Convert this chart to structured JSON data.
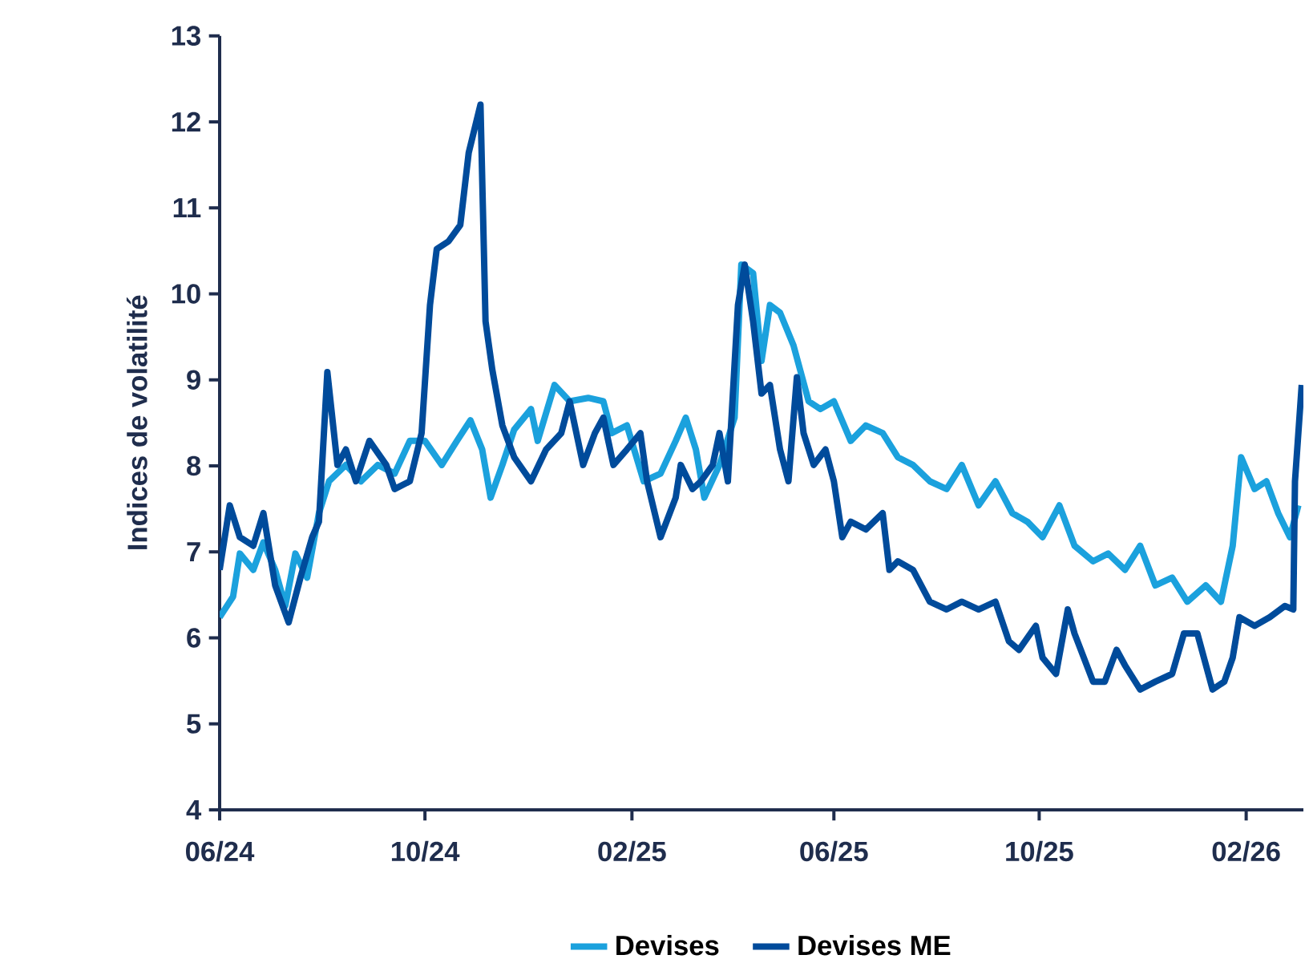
{
  "chart_data": {
    "type": "line",
    "ylabel": "Indices de volatilité",
    "xlim": [
      "2024-06-01",
      "2026-03-07"
    ],
    "ylim": [
      4,
      13
    ],
    "xticks": [
      {
        "value": "2024-06-01",
        "label": "06/24"
      },
      {
        "value": "2024-10-01",
        "label": "10/24"
      },
      {
        "value": "2025-02-01",
        "label": "02/25"
      },
      {
        "value": "2025-06-01",
        "label": "06/25"
      },
      {
        "value": "2025-10-01",
        "label": "10/25"
      },
      {
        "value": "2026-02-01",
        "label": "02/26"
      }
    ],
    "yticks": [
      4,
      5,
      6,
      7,
      8,
      9,
      10,
      11,
      12,
      13
    ],
    "legend": "bottom",
    "series": [
      {
        "name": "Devises",
        "color": "#1ba1dd",
        "x": [
          "2024-06-01",
          "2024-06-09",
          "2024-06-13",
          "2024-06-21",
          "2024-06-27",
          "2024-07-04",
          "2024-07-10",
          "2024-07-16",
          "2024-07-23",
          "2024-07-30",
          "2024-08-05",
          "2024-08-15",
          "2024-08-24",
          "2024-09-03",
          "2024-09-13",
          "2024-09-22",
          "2024-10-01",
          "2024-10-11",
          "2024-10-20",
          "2024-10-28",
          "2024-11-04",
          "2024-11-09",
          "2024-11-16",
          "2024-11-23",
          "2024-12-03",
          "2024-12-07",
          "2024-12-17",
          "2024-12-26",
          "2025-01-06",
          "2025-01-15",
          "2025-01-20",
          "2025-01-29",
          "2025-02-08",
          "2025-02-18",
          "2025-02-27",
          "2025-03-05",
          "2025-03-11",
          "2025-03-16",
          "2025-03-25",
          "2025-04-03",
          "2025-04-07",
          "2025-04-14",
          "2025-04-19",
          "2025-04-24",
          "2025-04-30",
          "2025-05-08",
          "2025-05-17",
          "2025-05-24",
          "2025-06-01",
          "2025-06-11",
          "2025-06-20",
          "2025-06-30",
          "2025-07-09",
          "2025-07-18",
          "2025-07-28",
          "2025-08-07",
          "2025-08-16",
          "2025-08-26",
          "2025-09-05",
          "2025-09-15",
          "2025-09-24",
          "2025-10-03",
          "2025-10-13",
          "2025-10-22",
          "2025-11-02",
          "2025-11-11",
          "2025-11-21",
          "2025-11-30",
          "2025-12-09",
          "2025-12-19",
          "2025-12-28",
          "2026-01-08",
          "2026-01-17",
          "2026-01-24",
          "2026-01-29",
          "2026-02-06",
          "2026-02-13",
          "2026-02-20",
          "2026-02-27",
          "2026-03-04"
        ],
        "values": [
          6.24,
          6.48,
          6.98,
          6.79,
          7.11,
          6.79,
          6.37,
          6.98,
          6.7,
          7.45,
          7.82,
          8.01,
          7.82,
          8.01,
          7.91,
          8.29,
          8.29,
          8.01,
          8.29,
          8.53,
          8.19,
          7.63,
          8.01,
          8.42,
          8.66,
          8.29,
          8.94,
          8.75,
          8.79,
          8.75,
          8.38,
          8.47,
          7.82,
          7.91,
          8.29,
          8.56,
          8.19,
          7.63,
          8.01,
          8.56,
          10.34,
          10.24,
          9.22,
          9.87,
          9.78,
          9.4,
          8.75,
          8.66,
          8.75,
          8.29,
          8.47,
          8.38,
          8.1,
          8.01,
          7.82,
          7.73,
          8.01,
          7.54,
          7.82,
          7.45,
          7.35,
          7.17,
          7.54,
          7.07,
          6.89,
          6.98,
          6.79,
          7.07,
          6.61,
          6.7,
          6.42,
          6.61,
          6.42,
          7.07,
          8.1,
          7.73,
          7.82,
          7.45,
          7.17,
          7.54
        ]
      },
      {
        "name": "Devises ME",
        "color": "#004b9b",
        "x": [
          "2024-06-01",
          "2024-06-07",
          "2024-06-13",
          "2024-06-21",
          "2024-06-27",
          "2024-07-04",
          "2024-07-12",
          "2024-07-19",
          "2024-07-26",
          "2024-07-30",
          "2024-08-04",
          "2024-08-10",
          "2024-08-15",
          "2024-08-21",
          "2024-08-29",
          "2024-09-08",
          "2024-09-13",
          "2024-09-22",
          "2024-09-29",
          "2024-10-04",
          "2024-10-08",
          "2024-10-15",
          "2024-10-22",
          "2024-10-27",
          "2024-11-03",
          "2024-11-06",
          "2024-11-10",
          "2024-11-16",
          "2024-11-23",
          "2024-12-03",
          "2024-12-12",
          "2024-12-21",
          "2024-12-26",
          "2025-01-03",
          "2025-01-10",
          "2025-01-15",
          "2025-01-21",
          "2025-01-29",
          "2025-02-06",
          "2025-02-10",
          "2025-02-18",
          "2025-02-27",
          "2025-03-02",
          "2025-03-09",
          "2025-03-14",
          "2025-03-21",
          "2025-03-25",
          "2025-03-30",
          "2025-04-05",
          "2025-04-09",
          "2025-04-14",
          "2025-04-19",
          "2025-04-24",
          "2025-04-30",
          "2025-05-05",
          "2025-05-10",
          "2025-05-14",
          "2025-05-20",
          "2025-05-27",
          "2025-06-01",
          "2025-06-06",
          "2025-06-11",
          "2025-06-20",
          "2025-06-30",
          "2025-07-04",
          "2025-07-09",
          "2025-07-18",
          "2025-07-28",
          "2025-08-07",
          "2025-08-16",
          "2025-08-26",
          "2025-09-05",
          "2025-09-13",
          "2025-09-19",
          "2025-09-29",
          "2025-10-03",
          "2025-10-11",
          "2025-10-18",
          "2025-10-22",
          "2025-11-02",
          "2025-11-09",
          "2025-11-16",
          "2025-11-21",
          "2025-11-30",
          "2025-12-09",
          "2025-12-19",
          "2025-12-26",
          "2026-01-03",
          "2026-01-12",
          "2026-01-19",
          "2026-01-24",
          "2026-01-28",
          "2026-02-06",
          "2026-02-15",
          "2026-02-24",
          "2026-03-01",
          "2026-03-02",
          "2026-03-06"
        ],
        "values": [
          6.79,
          7.54,
          7.17,
          7.07,
          7.45,
          6.61,
          6.18,
          6.7,
          7.17,
          7.35,
          9.09,
          8.01,
          8.19,
          7.82,
          8.29,
          8.01,
          7.73,
          7.82,
          8.38,
          9.87,
          10.52,
          10.61,
          10.8,
          11.64,
          12.2,
          9.68,
          9.12,
          8.47,
          8.1,
          7.82,
          8.19,
          8.38,
          8.75,
          8.01,
          8.38,
          8.56,
          8.01,
          8.19,
          8.38,
          7.82,
          7.17,
          7.63,
          8.01,
          7.73,
          7.82,
          8.01,
          8.38,
          7.82,
          9.87,
          10.34,
          9.68,
          8.84,
          8.94,
          8.19,
          7.82,
          9.03,
          8.38,
          8.01,
          8.19,
          7.82,
          7.17,
          7.35,
          7.26,
          7.45,
          6.79,
          6.89,
          6.79,
          6.42,
          6.33,
          6.42,
          6.33,
          6.42,
          5.96,
          5.86,
          6.14,
          5.77,
          5.58,
          6.33,
          6.05,
          5.49,
          5.49,
          5.86,
          5.68,
          5.4,
          5.49,
          5.58,
          6.05,
          6.05,
          5.4,
          5.49,
          5.77,
          6.24,
          6.14,
          6.24,
          6.37,
          6.33,
          7.82,
          8.94
        ]
      }
    ]
  }
}
